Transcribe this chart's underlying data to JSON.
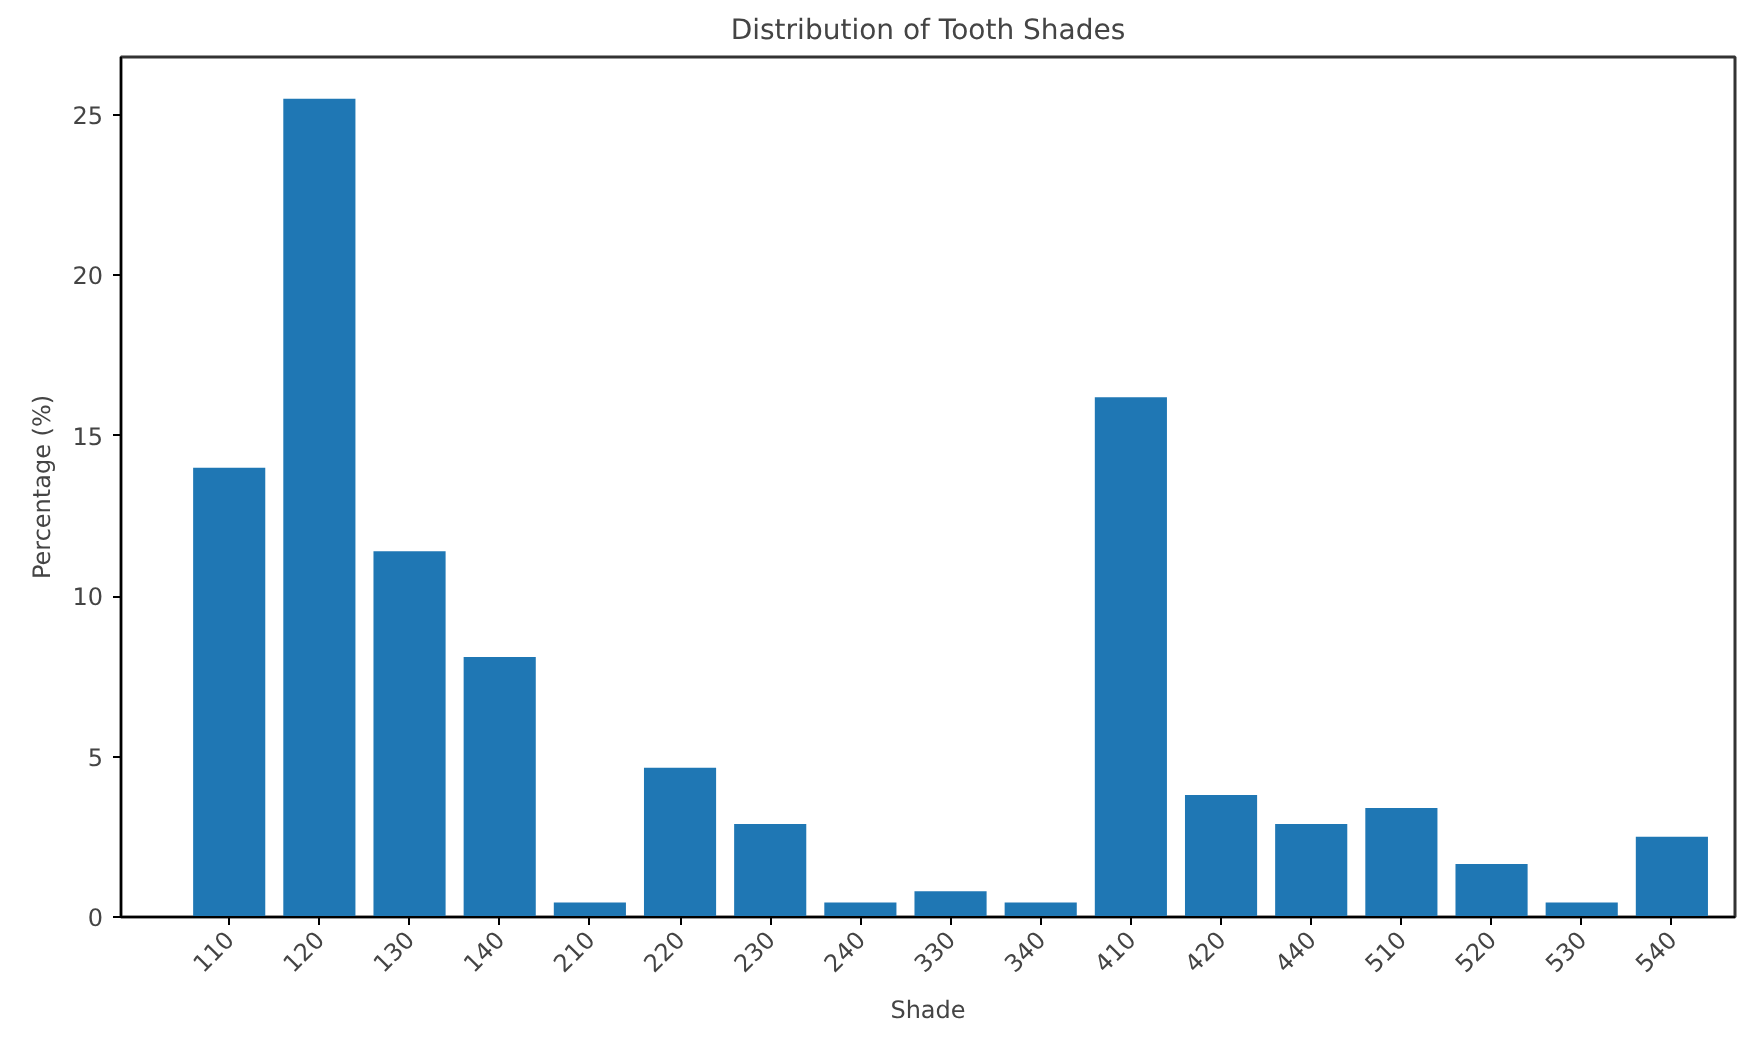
{
  "chart_data": {
    "type": "bar",
    "title": "Distribution of Tooth Shades",
    "xlabel": "Shade",
    "ylabel": "Percentage (%)",
    "categories": [
      "110",
      "120",
      "130",
      "140",
      "210",
      "220",
      "230",
      "240",
      "330",
      "340",
      "410",
      "420",
      "440",
      "510",
      "520",
      "530",
      "540"
    ],
    "values": [
      14.0,
      25.5,
      11.4,
      8.1,
      0.45,
      4.65,
      2.9,
      0.45,
      0.8,
      0.45,
      16.2,
      3.8,
      2.9,
      3.4,
      1.65,
      0.45,
      2.5
    ],
    "color": "#1f77b4",
    "ylim": [
      0,
      26.8
    ],
    "yticks": [
      0,
      5,
      10,
      15,
      20,
      25
    ],
    "grid": false
  }
}
